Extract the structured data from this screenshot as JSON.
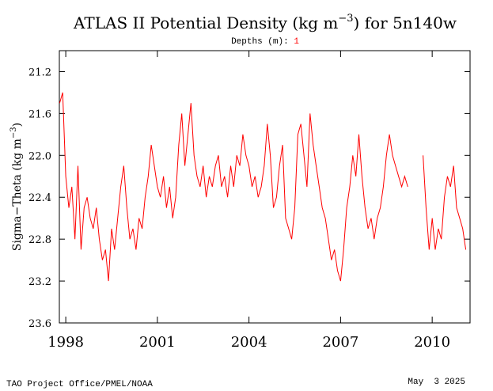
{
  "chart_data": {
    "type": "line",
    "title_parts": [
      "ATLAS II Potential Density (kg m",
      "−3",
      ") for 5n140w"
    ],
    "subtitle": "Depths (m):",
    "depth": "1",
    "ylabel_parts": [
      "Sigma−Theta (kg m",
      "−3",
      ")"
    ],
    "footer_left": "TAO Project Office/PMEL/NOAA",
    "footer_right": "May  3 2025",
    "color": "#ff0000",
    "depth_color": "#ff0000",
    "xlim": [
      1997.79,
      2011.24
    ],
    "xticks": [
      1998,
      2001,
      2004,
      2007,
      2010
    ],
    "ylim": [
      23.6,
      21.0
    ],
    "yticks": [
      {
        "value": 21.2,
        "label": "21.2"
      },
      {
        "value": 21.6,
        "label": "21.6"
      },
      {
        "value": 22.0,
        "label": "22.0"
      },
      {
        "value": 22.4,
        "label": "22.4"
      },
      {
        "value": 22.8,
        "label": "22.8"
      },
      {
        "value": 23.2,
        "label": "23.2"
      },
      {
        "value": 23.6,
        "label": "23.6"
      }
    ],
    "x": [
      1997.8,
      1997.9,
      1998.0,
      1998.1,
      1998.2,
      1998.3,
      1998.4,
      1998.5,
      1998.6,
      1998.7,
      1998.8,
      1998.9,
      1999.0,
      1999.1,
      1999.2,
      1999.3,
      1999.4,
      1999.5,
      1999.6,
      1999.7,
      1999.8,
      1999.9,
      2000.0,
      2000.1,
      2000.2,
      2000.3,
      2000.4,
      2000.5,
      2000.6,
      2000.7,
      2000.8,
      2000.9,
      2001.0,
      2001.1,
      2001.2,
      2001.3,
      2001.4,
      2001.5,
      2001.6,
      2001.7,
      2001.8,
      2001.9,
      2002.0,
      2002.1,
      2002.2,
      2002.3,
      2002.4,
      2002.5,
      2002.6,
      2002.7,
      2002.8,
      2002.9,
      2003.0,
      2003.1,
      2003.2,
      2003.3,
      2003.4,
      2003.5,
      2003.6,
      2003.7,
      2003.8,
      2003.9,
      2004.0,
      2004.1,
      2004.2,
      2004.3,
      2004.4,
      2004.5,
      2004.6,
      2004.7,
      2004.8,
      2004.9,
      2005.0,
      2005.1,
      2005.2,
      2005.3,
      2005.4,
      2005.5,
      2005.6,
      2005.7,
      2005.8,
      2005.9,
      2006.0,
      2006.1,
      2006.2,
      2006.3,
      2006.4,
      2006.5,
      2006.6,
      2006.7,
      2006.8,
      2006.9,
      2007.0,
      2007.1,
      2007.2,
      2007.3,
      2007.4,
      2007.5,
      2007.6,
      2007.7,
      2007.8,
      2007.9,
      2008.0,
      2008.1,
      2008.2,
      2008.3,
      2008.4,
      2008.5,
      2008.6,
      2008.7,
      2008.8,
      2008.9,
      2009.0,
      2009.1,
      2009.2,
      2009.3,
      2009.4,
      2009.5,
      2009.6,
      2009.7,
      2009.8,
      2009.9,
      2010.0,
      2010.1,
      2010.2,
      2010.3,
      2010.4,
      2010.5,
      2010.6,
      2010.7,
      2010.8,
      2010.9,
      2011.0,
      2011.1
    ],
    "values": [
      21.5,
      21.4,
      22.2,
      22.5,
      22.3,
      22.8,
      22.1,
      22.9,
      22.5,
      22.4,
      22.6,
      22.7,
      22.5,
      22.8,
      23.0,
      22.9,
      23.2,
      22.7,
      22.9,
      22.6,
      22.3,
      22.1,
      22.5,
      22.8,
      22.7,
      22.9,
      22.6,
      22.7,
      22.4,
      22.2,
      21.9,
      22.1,
      22.3,
      22.4,
      22.2,
      22.5,
      22.3,
      22.6,
      22.4,
      21.9,
      21.6,
      22.1,
      21.8,
      21.5,
      22.0,
      22.2,
      22.3,
      22.1,
      22.4,
      22.2,
      22.3,
      22.1,
      22.0,
      22.3,
      22.2,
      22.4,
      22.1,
      22.3,
      22.0,
      22.1,
      21.8,
      22.0,
      22.1,
      22.3,
      22.2,
      22.4,
      22.3,
      22.1,
      21.7,
      22.0,
      22.5,
      22.4,
      22.1,
      21.9,
      22.6,
      22.7,
      22.8,
      22.5,
      21.8,
      21.7,
      22.0,
      22.3,
      21.6,
      21.9,
      22.1,
      22.3,
      22.5,
      22.6,
      22.8,
      23.0,
      22.9,
      23.1,
      23.2,
      22.9,
      22.5,
      22.3,
      22.0,
      22.2,
      21.8,
      22.2,
      22.5,
      22.7,
      22.6,
      22.8,
      22.6,
      22.5,
      22.3,
      22.0,
      21.8,
      22.0,
      22.1,
      22.2,
      22.3,
      22.2,
      22.3,
      null,
      null,
      null,
      null,
      22.0,
      22.5,
      22.9,
      22.6,
      22.9,
      22.7,
      22.8,
      22.4,
      22.2,
      22.3,
      22.1,
      22.5,
      22.6,
      22.7,
      22.9
    ]
  }
}
